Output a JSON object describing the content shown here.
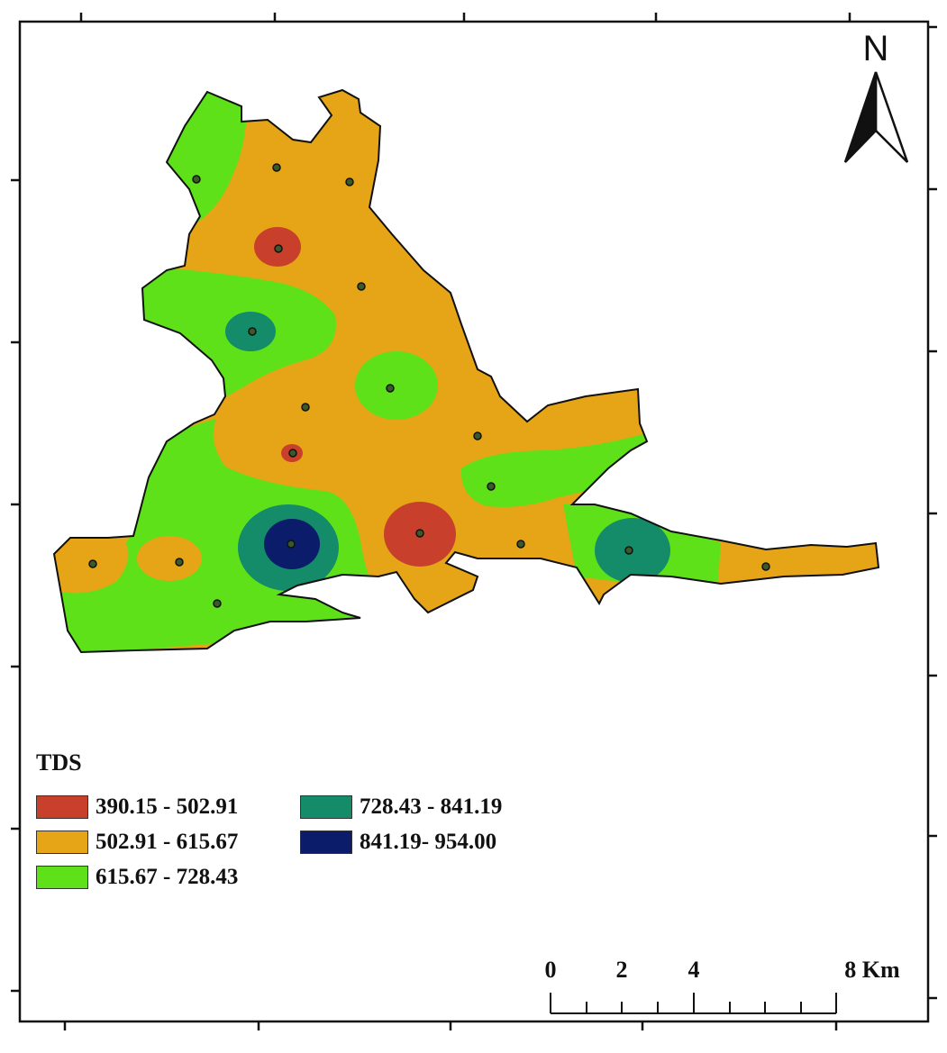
{
  "legend": {
    "title": "TDS",
    "classes": [
      {
        "label": "390.15 - 502.91",
        "color": "#c8402b"
      },
      {
        "label": "502.91 - 615.67",
        "color": "#e5a516"
      },
      {
        "label": "615.67 - 728.43",
        "color": "#5fe11a"
      },
      {
        "label": "728.43 - 841.19",
        "color": "#148c6a"
      },
      {
        "label": "841.19- 954.00",
        "color": "#0b1c6b"
      }
    ]
  },
  "north_arrow": {
    "letter": "N"
  },
  "scale_bar": {
    "ticks": [
      "0",
      "2",
      "4",
      "8 Km"
    ]
  }
}
